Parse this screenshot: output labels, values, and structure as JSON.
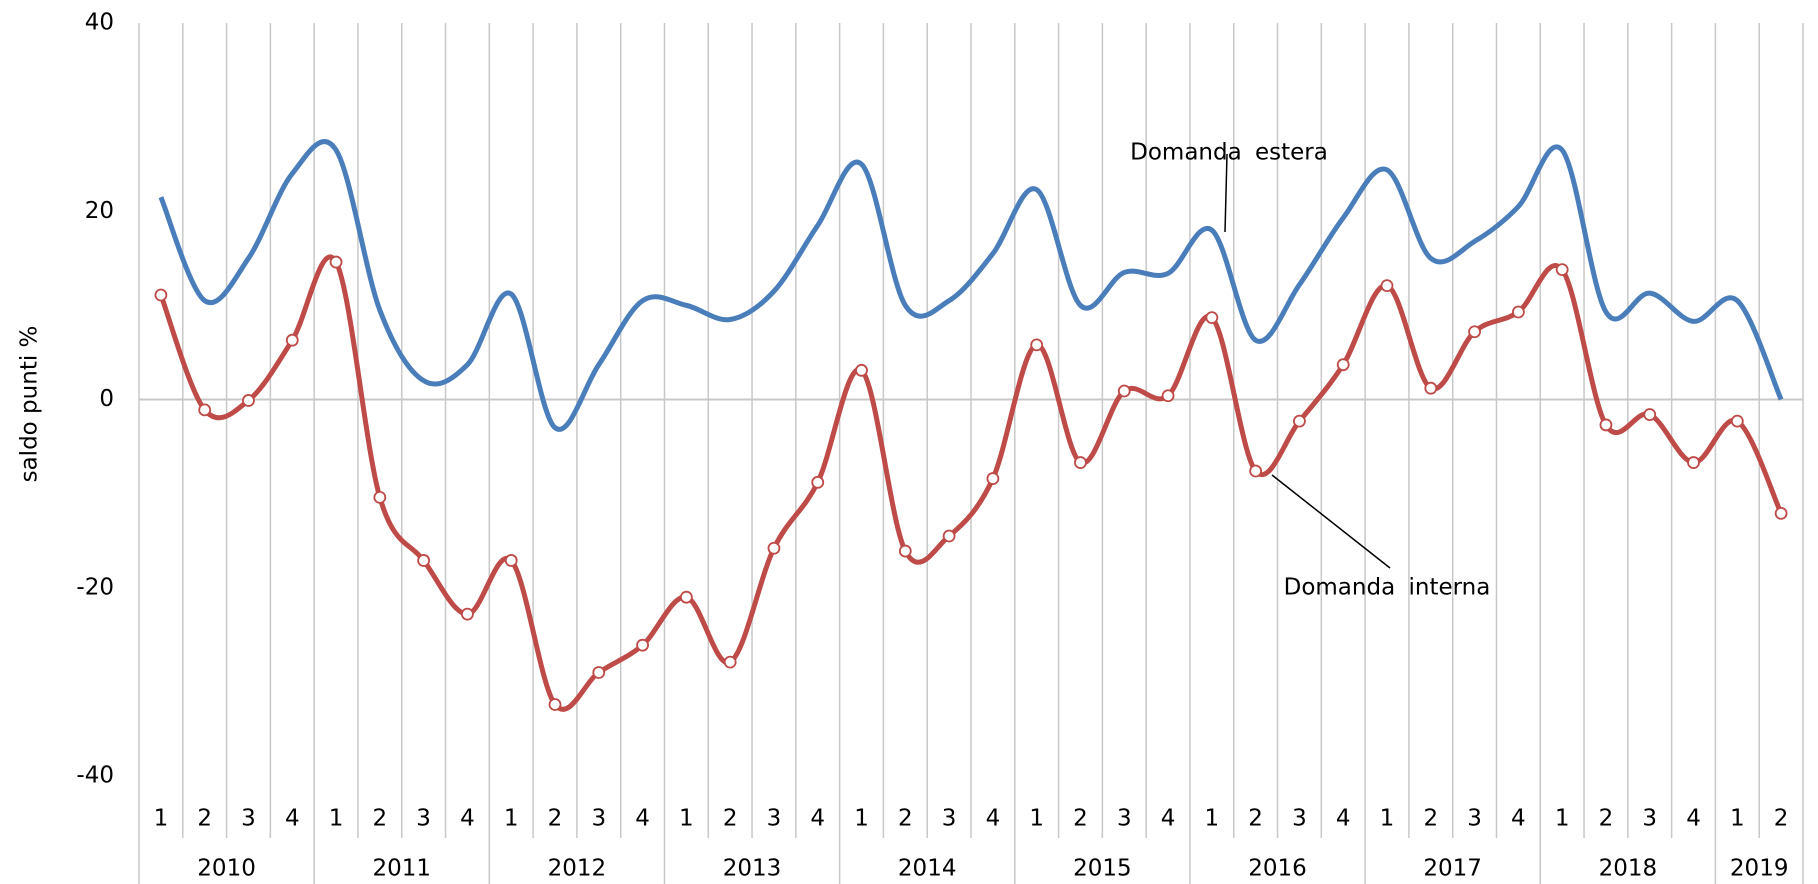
{
  "chart_data": {
    "type": "line",
    "ylabel": "saldo punti %",
    "categories": [
      "1",
      "2",
      "3",
      "4",
      "1",
      "2",
      "3",
      "4",
      "1",
      "2",
      "3",
      "4",
      "1",
      "2",
      "3",
      "4",
      "1",
      "2",
      "3",
      "4",
      "1",
      "2",
      "3",
      "4",
      "1",
      "2",
      "3",
      "4",
      "1",
      "2",
      "3",
      "4",
      "1",
      "2",
      "3",
      "4",
      "1",
      "2"
    ],
    "years": [
      "2010",
      "2011",
      "2012",
      "2013",
      "2014",
      "2015",
      "2016",
      "2017",
      "2018",
      "2019"
    ],
    "ylim": [
      -40,
      40
    ],
    "yticks": [
      -40,
      -20,
      0,
      20,
      40
    ],
    "grid": true,
    "series": [
      {
        "name": "Domanda estera",
        "color": "#4a7ebb",
        "markers": false,
        "values": [
          21.5,
          10.5,
          15,
          24,
          26.5,
          9.5,
          2,
          3.7,
          11.2,
          -3,
          3.7,
          10.5,
          10,
          8.5,
          11.5,
          18.5,
          25,
          10,
          10.5,
          15.5,
          22.3,
          10,
          13.5,
          13.4,
          18,
          6.3,
          12.2,
          19.3,
          24.4,
          15,
          16.8,
          20.5,
          26.5,
          9.3,
          11.3,
          8.3,
          10.5,
          0
        ]
      },
      {
        "name": "Domanda interna",
        "color": "#be4b48",
        "markers": true,
        "values": [
          11.1,
          -1.1,
          -0.1,
          6.3,
          14.6,
          -10.4,
          -17.1,
          -22.8,
          -17.1,
          -32.4,
          -29,
          -26.1,
          -21,
          -27.9,
          -15.8,
          -8.8,
          3.1,
          -16.1,
          -14.5,
          -8.4,
          5.8,
          -6.7,
          0.9,
          0.4,
          8.7,
          -7.6,
          -2.3,
          3.7,
          12.1,
          1.2,
          7.2,
          9.3,
          13.8,
          -2.7,
          -1.6,
          -6.7,
          -2.3,
          -12.1
        ]
      }
    ]
  }
}
